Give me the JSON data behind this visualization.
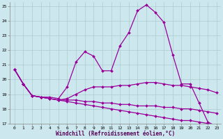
{
  "xlabel": "Windchill (Refroidissement éolien,°C)",
  "bg_color": "#cce8ee",
  "grid_color": "#aacccc",
  "line_color": "#990099",
  "xlim": [
    -0.5,
    23.5
  ],
  "ylim": [
    17,
    25.3
  ],
  "yticks": [
    17,
    18,
    19,
    20,
    21,
    22,
    23,
    24,
    25
  ],
  "xticks": [
    0,
    1,
    2,
    3,
    4,
    5,
    6,
    7,
    8,
    9,
    10,
    11,
    12,
    13,
    14,
    15,
    16,
    17,
    18,
    19,
    20,
    21,
    22,
    23
  ],
  "lines": [
    {
      "x": [
        0,
        1,
        2,
        3,
        4,
        5,
        6,
        7,
        8,
        9,
        10,
        11,
        12,
        13,
        14,
        15,
        16,
        17,
        18,
        19,
        20,
        21,
        22,
        23
      ],
      "y": [
        20.7,
        19.7,
        18.9,
        18.8,
        18.8,
        18.7,
        19.5,
        21.2,
        21.9,
        21.6,
        20.6,
        20.6,
        22.3,
        23.2,
        24.7,
        25.1,
        24.6,
        23.9,
        21.7,
        19.7,
        19.7,
        18.4,
        17.1,
        16.8
      ]
    },
    {
      "x": [
        0,
        1,
        2,
        3,
        4,
        5,
        6,
        7,
        8,
        9,
        10,
        11,
        12,
        13,
        14,
        15,
        16,
        17,
        18,
        19,
        20,
        21,
        22,
        23
      ],
      "y": [
        20.7,
        19.7,
        18.9,
        18.8,
        18.7,
        18.6,
        18.7,
        19.0,
        19.3,
        19.5,
        19.5,
        19.5,
        19.6,
        19.6,
        19.7,
        19.8,
        19.8,
        19.7,
        19.6,
        19.6,
        19.5,
        19.4,
        19.3,
        19.1
      ]
    },
    {
      "x": [
        0,
        1,
        2,
        3,
        4,
        5,
        6,
        7,
        8,
        9,
        10,
        11,
        12,
        13,
        14,
        15,
        16,
        17,
        18,
        19,
        20,
        21,
        22,
        23
      ],
      "y": [
        20.7,
        19.7,
        18.9,
        18.8,
        18.7,
        18.6,
        18.6,
        18.6,
        18.5,
        18.5,
        18.4,
        18.4,
        18.3,
        18.3,
        18.2,
        18.2,
        18.2,
        18.1,
        18.1,
        18.0,
        18.0,
        17.9,
        17.8,
        17.7
      ]
    },
    {
      "x": [
        0,
        1,
        2,
        3,
        4,
        5,
        6,
        7,
        8,
        9,
        10,
        11,
        12,
        13,
        14,
        15,
        16,
        17,
        18,
        19,
        20,
        21,
        22,
        23
      ],
      "y": [
        20.7,
        19.7,
        18.9,
        18.8,
        18.7,
        18.6,
        18.5,
        18.4,
        18.3,
        18.2,
        18.1,
        18.0,
        17.9,
        17.8,
        17.7,
        17.6,
        17.5,
        17.4,
        17.3,
        17.2,
        17.2,
        17.1,
        17.0,
        16.9
      ]
    }
  ],
  "marker_size": 2.0,
  "linewidth": 0.9,
  "tick_fontsize": 4.5,
  "xlabel_fontsize": 5.5
}
